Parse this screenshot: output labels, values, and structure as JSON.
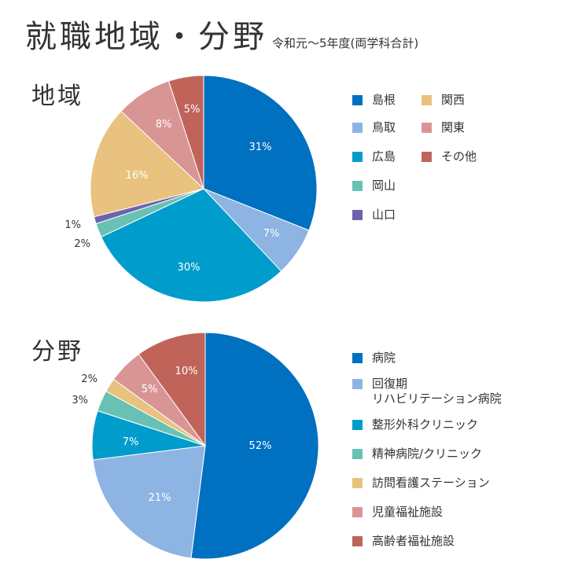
{
  "title": "就職地域・分野",
  "subtitle": "令和元～5年度(両学科合計)",
  "chart_data": [
    {
      "type": "pie",
      "section_label": "地域",
      "colors": [
        "#0070c0",
        "#8db4e2",
        "#009ccc",
        "#69c1b4",
        "#6b64ad",
        "#e8c27e",
        "#d99594",
        "#c0645a"
      ],
      "slices": [
        {
          "name": "島根",
          "value": 31,
          "label": "31%"
        },
        {
          "name": "鳥取",
          "value": 7,
          "label": "7%"
        },
        {
          "name": "広島",
          "value": 30,
          "label": "30%"
        },
        {
          "name": "岡山",
          "value": 2,
          "label": "2%"
        },
        {
          "name": "山口",
          "value": 1,
          "label": "1%"
        },
        {
          "name": "関西",
          "value": 16,
          "label": "16%"
        },
        {
          "name": "関東",
          "value": 8,
          "label": "8%"
        },
        {
          "name": "その他",
          "value": 5,
          "label": "5%"
        }
      ],
      "legend": [
        {
          "lines": [
            "島根"
          ],
          "color": "#0070c0"
        },
        {
          "lines": [
            "鳥取"
          ],
          "color": "#8db4e2"
        },
        {
          "lines": [
            "広島"
          ],
          "color": "#009ccc"
        },
        {
          "lines": [
            "岡山"
          ],
          "color": "#69c1b4"
        },
        {
          "lines": [
            "山口"
          ],
          "color": "#6b64ad"
        },
        {
          "lines": [
            "関西"
          ],
          "color": "#e8c27e"
        },
        {
          "lines": [
            "関東"
          ],
          "color": "#d99594"
        },
        {
          "lines": [
            "その他"
          ],
          "color": "#c0645a"
        }
      ]
    },
    {
      "type": "pie",
      "section_label": "分野",
      "colors": [
        "#0070c0",
        "#8db4e2",
        "#009ccc",
        "#69c1b4",
        "#e8c27e",
        "#d99594",
        "#c0645a"
      ],
      "slices": [
        {
          "name": "病院",
          "value": 52,
          "label": "52%"
        },
        {
          "name": "回復期リハビリテーション病院",
          "value": 21,
          "label": "21%"
        },
        {
          "name": "整形外科クリニック",
          "value": 7,
          "label": "7%"
        },
        {
          "name": "精神病院/クリニック",
          "value": 3,
          "label": "3%"
        },
        {
          "name": "訪問看護ステーション",
          "value": 2,
          "label": "2%"
        },
        {
          "name": "児童福祉施設",
          "value": 5,
          "label": "5%"
        },
        {
          "name": "高齢者福祉施設",
          "value": 10,
          "label": "10%"
        }
      ],
      "legend": [
        {
          "lines": [
            "病院"
          ],
          "color": "#0070c0"
        },
        {
          "lines": [
            "回復期",
            "リハビリテーション病院"
          ],
          "color": "#8db4e2"
        },
        {
          "lines": [
            "整形外科クリニック"
          ],
          "color": "#009ccc"
        },
        {
          "lines": [
            "精神病院/クリニック"
          ],
          "color": "#69c1b4"
        },
        {
          "lines": [
            "訪問看護ステーション"
          ],
          "color": "#e8c27e"
        },
        {
          "lines": [
            "児童福祉施設"
          ],
          "color": "#d99594"
        },
        {
          "lines": [
            "高齢者福祉施設"
          ],
          "color": "#c0645a"
        }
      ]
    }
  ]
}
